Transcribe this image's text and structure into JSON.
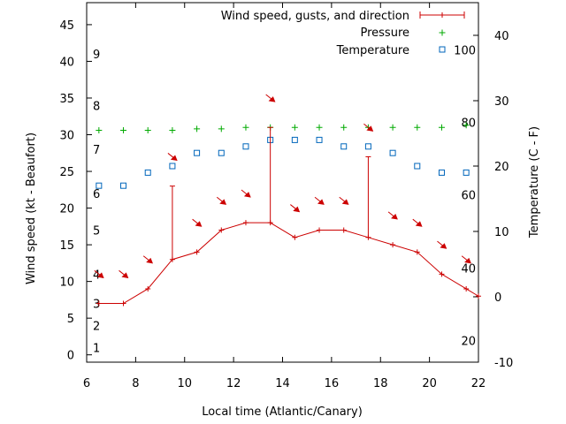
{
  "chart_data": {
    "type": "line",
    "xlabel": "Local time (Atlantic/Canary)",
    "ylabel": "Wind speed (kt - Beaufort)",
    "y2label": "Temperature (C - F)",
    "xlim": [
      6,
      22
    ],
    "ylim": [
      -1,
      48
    ],
    "y2lim": [
      -10,
      45
    ],
    "x_ticks": [
      6,
      8,
      10,
      12,
      14,
      16,
      18,
      20,
      22
    ],
    "y_ticks": [
      0,
      5,
      10,
      15,
      20,
      25,
      30,
      35,
      40,
      45
    ],
    "y2_ticks": [
      -10,
      0,
      10,
      20,
      30,
      40
    ],
    "beaufort_labels": [
      {
        "label": "1",
        "y": 1
      },
      {
        "label": "2",
        "y": 4
      },
      {
        "label": "3",
        "y": 7
      },
      {
        "label": "4",
        "y": 11
      },
      {
        "label": "5",
        "y": 17
      },
      {
        "label": "6",
        "y": 22
      },
      {
        "label": "7",
        "y": 28
      },
      {
        "label": "8",
        "y": 34
      },
      {
        "label": "9",
        "y": 41
      }
    ],
    "fahrenheit_labels": [
      {
        "label": "20",
        "y2": -6.7
      },
      {
        "label": "40",
        "y2": 4.4
      },
      {
        "label": "60",
        "y2": 15.6
      },
      {
        "label": "80",
        "y2": 26.7
      },
      {
        "label": "100",
        "y2": 37.8
      }
    ],
    "legend": [
      "Wind speed, gusts, and direction",
      "Pressure",
      "Temperature"
    ],
    "legend_position": "top-right",
    "colors": {
      "wind": "#cc0000",
      "pressure": "#00aa00",
      "temperature": "#0066bb"
    },
    "wind": {
      "x": [
        6.5,
        7.5,
        8.5,
        9.5,
        10.5,
        11.5,
        12.5,
        13.5,
        14.5,
        15.5,
        16.5,
        17.5,
        18.5,
        19.5,
        20.5,
        21.5,
        22.0
      ],
      "speed": [
        7,
        7,
        9,
        13,
        14,
        17,
        18,
        18,
        16,
        17,
        17,
        16,
        15,
        14,
        11,
        9,
        8
      ],
      "gusts": [
        {
          "x": 9.5,
          "value": 23
        },
        {
          "x": 13.5,
          "value": 31
        },
        {
          "x": 17.5,
          "value": 27
        }
      ],
      "arrows": [
        {
          "x": 6.5,
          "y": 11
        },
        {
          "x": 7.5,
          "y": 11
        },
        {
          "x": 8.5,
          "y": 13
        },
        {
          "x": 9.5,
          "y": 27
        },
        {
          "x": 10.5,
          "y": 18
        },
        {
          "x": 11.5,
          "y": 21
        },
        {
          "x": 12.5,
          "y": 22
        },
        {
          "x": 13.5,
          "y": 35
        },
        {
          "x": 14.5,
          "y": 20
        },
        {
          "x": 15.5,
          "y": 21
        },
        {
          "x": 16.5,
          "y": 21
        },
        {
          "x": 17.5,
          "y": 31
        },
        {
          "x": 18.5,
          "y": 19
        },
        {
          "x": 19.5,
          "y": 18
        },
        {
          "x": 20.5,
          "y": 15
        },
        {
          "x": 21.5,
          "y": 13
        }
      ]
    },
    "pressure": {
      "x": [
        6.5,
        7.5,
        8.5,
        9.5,
        10.5,
        11.5,
        12.5,
        13.5,
        14.5,
        15.5,
        16.5,
        17.5,
        18.5,
        19.5,
        20.5,
        21.5
      ],
      "y": [
        30.6,
        30.6,
        30.6,
        30.6,
        30.8,
        30.8,
        31.0,
        31.0,
        31.0,
        31.0,
        31.0,
        31.0,
        31.0,
        31.0,
        31.0,
        31.3
      ]
    },
    "temperature": {
      "x": [
        6.5,
        7.5,
        8.5,
        9.5,
        10.5,
        11.5,
        12.5,
        13.5,
        14.5,
        15.5,
        16.5,
        17.5,
        18.5,
        19.5,
        20.5,
        21.5
      ],
      "y": [
        17,
        17,
        19,
        20,
        22,
        22,
        23,
        24,
        24,
        24,
        23,
        23,
        22,
        20,
        19,
        19
      ]
    }
  }
}
